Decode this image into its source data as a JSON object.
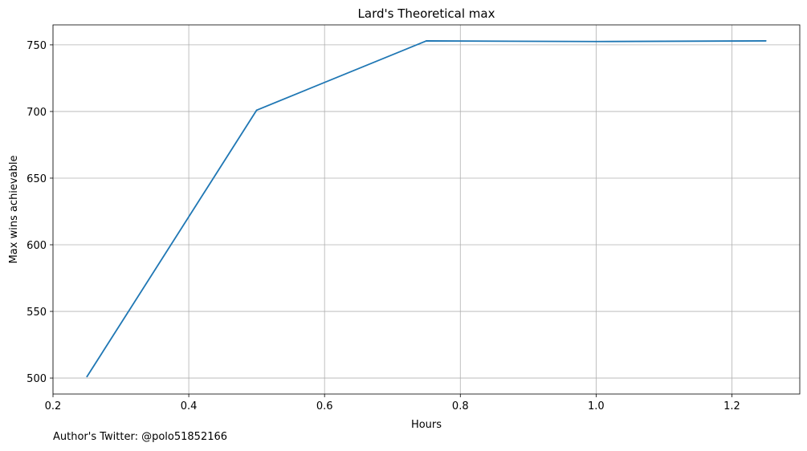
{
  "chart_data": {
    "type": "line",
    "title": "Lard's Theoretical max",
    "xlabel": "Hours",
    "ylabel": "Max wins achievable",
    "xlim": [
      0.2,
      1.3
    ],
    "ylim": [
      488,
      765
    ],
    "xticks": [
      0.2,
      0.4,
      0.6,
      0.8,
      1.0,
      1.2
    ],
    "xtick_labels": [
      "0.2",
      "0.4",
      "0.6",
      "0.8",
      "1.0",
      "1.2"
    ],
    "yticks": [
      500,
      550,
      600,
      650,
      700,
      750
    ],
    "ytick_labels": [
      "500",
      "550",
      "600",
      "650",
      "700",
      "750"
    ],
    "grid": true,
    "series": [
      {
        "color": "#1f77b4",
        "x": [
          0.25,
          0.5,
          0.75,
          1.0,
          1.25
        ],
        "y": [
          501,
          701,
          753,
          752.5,
          753
        ]
      }
    ]
  },
  "footnote": "Author's Twitter: @polo51852166",
  "colors": {
    "line": "#1f77b4",
    "grid": "#b0b0b0",
    "axis": "#000000"
  }
}
